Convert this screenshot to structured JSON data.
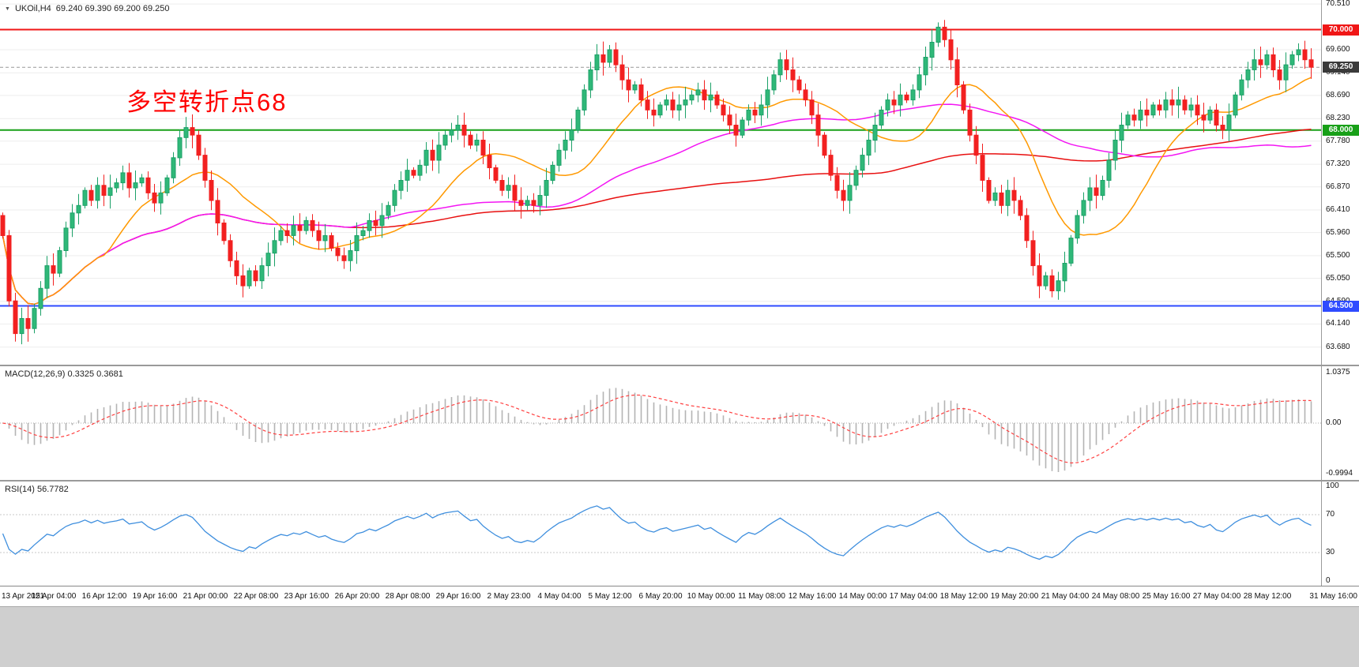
{
  "header": {
    "symbol": "UKOil,H4",
    "ohlc_text": "69.240 69.390 69.200 69.250",
    "collapse_icon": "▼"
  },
  "annotation": {
    "text": "多空转折点68"
  },
  "colors": {
    "bull": "#1ca168",
    "bull_fill": "#2fb878",
    "bear": "#f22020",
    "ma_fast": "#ff9900",
    "ma_mid": "#f316f3",
    "ma_slow": "#e81010",
    "level_70": "#f01616",
    "level_68": "#18a018",
    "level_645": "#2f4bff",
    "bid_badge": "#3a3a3a",
    "grid": "#ededed",
    "macd_hist": "#b4b4b4",
    "macd_signal": "#ff4040",
    "rsi_line": "#3f8fde"
  },
  "chart_data": {
    "type": "candlestick",
    "symbol": "UKOil",
    "timeframe": "H4",
    "title": "UKOil,H4 69.240 69.390 69.200 69.250",
    "ohlc_current": {
      "open": 69.24,
      "high": 69.39,
      "low": 69.2,
      "close": 69.25
    },
    "price_axis_ticks": [
      70.51,
      69.6,
      69.14,
      68.69,
      68.23,
      67.78,
      67.32,
      66.87,
      66.41,
      65.96,
      65.5,
      65.05,
      64.59,
      64.14,
      63.68
    ],
    "y_range": [
      63.33,
      70.59
    ],
    "levels": [
      {
        "value": 70.0,
        "label": "70.000",
        "color_key": "level_70"
      },
      {
        "value": 68.0,
        "label": "68.000",
        "color_key": "level_68"
      },
      {
        "value": 64.5,
        "label": "64.500",
        "color_key": "level_645"
      }
    ],
    "current_price": {
      "value": 69.25,
      "label": "69.250"
    },
    "series": {
      "name": "UKOil H4 closes (13 Apr 2021 - 31 May 2021, estimated from chart)",
      "first_open": 66.3,
      "closes": [
        65.9,
        64.6,
        63.95,
        64.25,
        64.05,
        64.45,
        64.85,
        65.3,
        65.15,
        65.6,
        66.05,
        66.35,
        66.5,
        66.8,
        66.6,
        66.9,
        66.7,
        66.85,
        66.95,
        67.15,
        66.85,
        66.95,
        67.05,
        66.75,
        66.55,
        66.75,
        67.05,
        67.45,
        67.85,
        68.05,
        67.9,
        67.5,
        67.0,
        66.6,
        66.15,
        65.8,
        65.4,
        65.1,
        64.9,
        65.2,
        65.0,
        65.3,
        65.55,
        65.8,
        66.0,
        65.9,
        66.1,
        66.0,
        66.2,
        66.0,
        65.8,
        65.9,
        65.65,
        65.5,
        65.4,
        65.6,
        65.9,
        66.0,
        66.2,
        66.1,
        66.3,
        66.5,
        66.8,
        67.0,
        67.2,
        67.1,
        67.3,
        67.6,
        67.4,
        67.7,
        67.9,
        68.0,
        68.1,
        67.9,
        67.7,
        67.8,
        67.5,
        67.25,
        67.0,
        66.8,
        66.9,
        66.6,
        66.5,
        66.6,
        66.5,
        66.7,
        67.0,
        67.3,
        67.6,
        67.8,
        68.0,
        68.4,
        68.8,
        69.2,
        69.5,
        69.35,
        69.6,
        69.3,
        69.0,
        68.8,
        68.9,
        68.6,
        68.4,
        68.3,
        68.5,
        68.6,
        68.4,
        68.5,
        68.6,
        68.7,
        68.8,
        68.6,
        68.7,
        68.5,
        68.3,
        68.1,
        67.9,
        68.2,
        68.4,
        68.3,
        68.5,
        68.8,
        69.1,
        69.4,
        69.2,
        69.0,
        68.8,
        68.6,
        68.3,
        67.9,
        67.5,
        67.1,
        66.8,
        66.6,
        66.9,
        67.2,
        67.5,
        67.8,
        68.1,
        68.4,
        68.6,
        68.5,
        68.7,
        68.6,
        68.8,
        69.1,
        69.45,
        69.75,
        70.05,
        69.8,
        69.4,
        68.9,
        68.4,
        67.9,
        67.5,
        67.0,
        66.6,
        66.75,
        66.5,
        66.8,
        66.6,
        66.3,
        65.8,
        65.3,
        64.9,
        65.1,
        64.8,
        65.0,
        65.35,
        65.85,
        66.3,
        66.6,
        66.85,
        66.7,
        67.0,
        67.4,
        67.8,
        68.1,
        68.3,
        68.2,
        68.4,
        68.3,
        68.5,
        68.4,
        68.6,
        68.5,
        68.6,
        68.4,
        68.5,
        68.3,
        68.2,
        68.4,
        68.1,
        68.0,
        68.3,
        68.7,
        69.0,
        69.2,
        69.4,
        69.3,
        69.5,
        69.2,
        69.0,
        69.3,
        69.5,
        69.6,
        69.4,
        69.25
      ]
    },
    "moving_averages": [
      {
        "period": 16,
        "color_key": "ma_fast"
      },
      {
        "period": 55,
        "color_key": "ma_mid"
      },
      {
        "period": 140,
        "color_key": "ma_slow"
      }
    ],
    "bars_per_time_label": 8,
    "time_axis_labels": [
      "13 Apr 2021",
      "15 Apr 04:00",
      "16 Apr 12:00",
      "19 Apr 16:00",
      "21 Apr 00:00",
      "22 Apr 08:00",
      "23 Apr 16:00",
      "26 Apr 20:00",
      "28 Apr 08:00",
      "29 Apr 16:00",
      "2 May 23:00",
      "4 May 04:00",
      "5 May 12:00",
      "6 May 20:00",
      "10 May 00:00",
      "11 May 08:00",
      "12 May 16:00",
      "14 May 00:00",
      "17 May 04:00",
      "18 May 12:00",
      "19 May 20:00",
      "21 May 04:00",
      "24 May 08:00",
      "25 May 16:00",
      "27 May 04:00",
      "28 May 12:00",
      "31 May 16:00"
    ],
    "indicators": {
      "macd": {
        "label": "MACD(12,26,9) 0.3325 0.3681",
        "fast": 12,
        "slow": 26,
        "signal": 9,
        "current_main": 0.3325,
        "current_signal": 0.3681,
        "axis_labels": [
          "1.0375",
          "0.00",
          "-0.9994"
        ],
        "axis_range": [
          -0.9994,
          1.0375
        ]
      },
      "rsi": {
        "label": "RSI(14) 56.7782",
        "period": 14,
        "current": 56.7782,
        "axis_labels": [
          "100",
          "70",
          "30",
          "0"
        ],
        "levels": [
          70,
          30
        ],
        "axis_range": [
          0,
          100
        ]
      }
    }
  }
}
